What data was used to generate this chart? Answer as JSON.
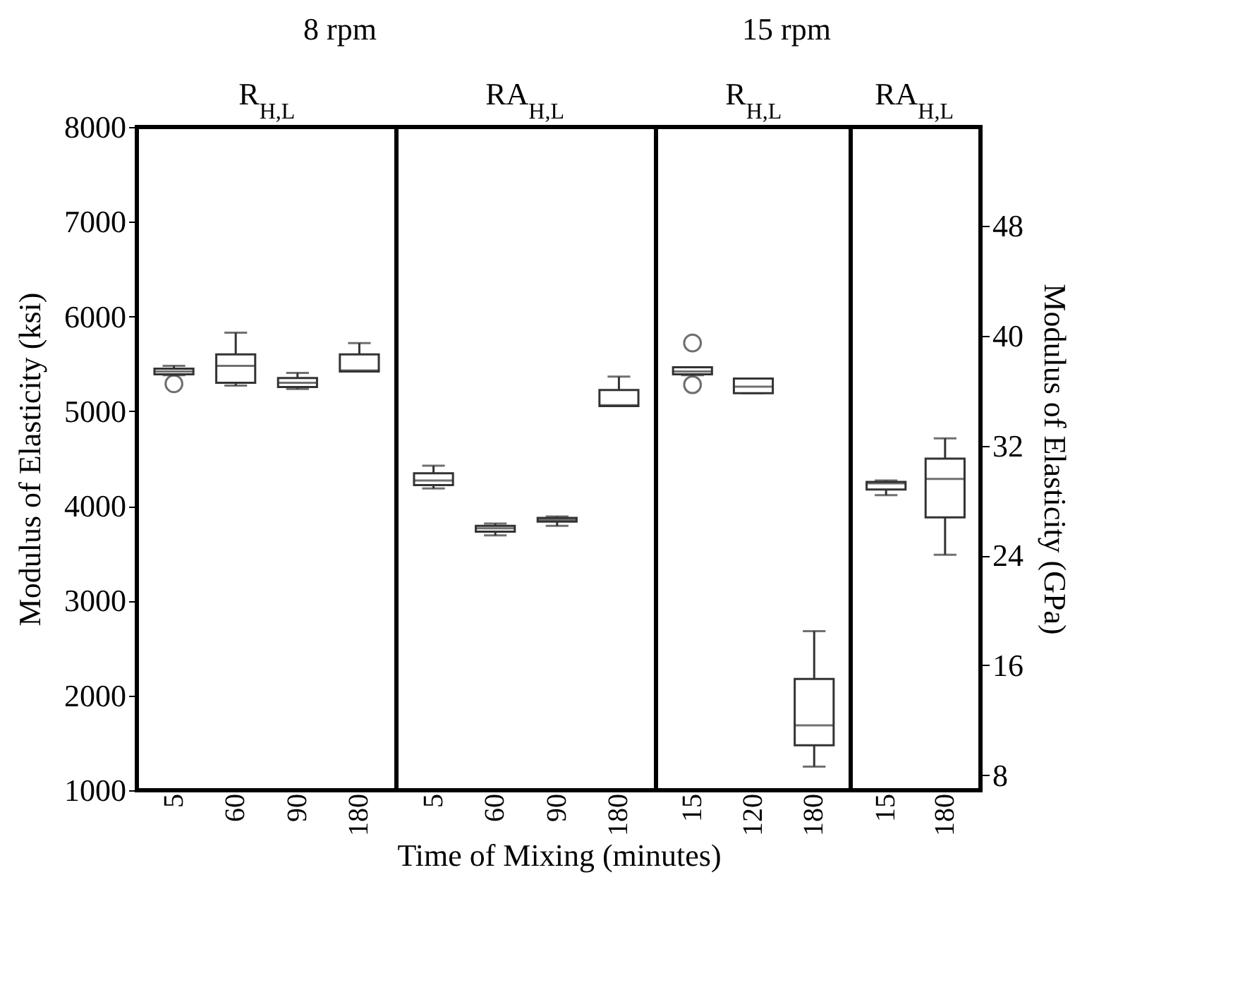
{
  "chart_data": [
    {
      "type": "box",
      "title": "8 rpm",
      "subtitle": "R$_{H,L}$",
      "ylabel": "Modulus of Elasticity (ksi)",
      "xlabel": "Time of Mixing (minutes)",
      "categories": [
        "5",
        "60",
        "90",
        "180"
      ],
      "ylim": [
        1000,
        8000
      ],
      "yticks": [
        1000,
        2000,
        3000,
        4000,
        5000,
        6000,
        7000,
        8000
      ],
      "boxes": [
        {
          "low": 5380,
          "q1": 5390,
          "median": 5420,
          "q3": 5450,
          "high": 5480,
          "outliers": [
            5290
          ]
        },
        {
          "low": 5270,
          "q1": 5300,
          "median": 5480,
          "q3": 5600,
          "high": 5830
        },
        {
          "low": 5235,
          "q1": 5255,
          "median": 5300,
          "q3": 5350,
          "high": 5405
        },
        {
          "low": 5420,
          "q1": 5420,
          "median": 5430,
          "q3": 5600,
          "high": 5720
        }
      ]
    },
    {
      "type": "box",
      "subtitle": "RA$_{H,L}$",
      "categories": [
        "5",
        "60",
        "90",
        "180"
      ],
      "ylim": [
        1000,
        8000
      ],
      "tick_labels": "x",
      "boxes": [
        {
          "low": 4185,
          "q1": 4220,
          "median": 4270,
          "q3": 4345,
          "high": 4425
        },
        {
          "low": 3690,
          "q1": 3730,
          "median": 3765,
          "q3": 3790,
          "high": 3815
        },
        {
          "low": 3790,
          "q1": 3835,
          "median": 3855,
          "q3": 3875,
          "high": 3890
        },
        {
          "low": 5055,
          "q1": 5055,
          "median": 5065,
          "q3": 5225,
          "high": 5365
        }
      ]
    },
    {
      "type": "box",
      "title": "15 rpm",
      "subtitle": "R$_{H,L}$",
      "categories": [
        "15",
        "120",
        "180"
      ],
      "ylim": [
        1000,
        8000
      ],
      "tick_labels": "x",
      "boxes": [
        {
          "low": 5380,
          "q1": 5390,
          "median": 5420,
          "q3": 5465,
          "high": 5465,
          "outliers": [
            5720,
            5280
          ]
        },
        {
          "low": 5190,
          "q1": 5190,
          "median": 5260,
          "q3": 5345,
          "high": 5345
        },
        {
          "low": 1250,
          "q1": 1475,
          "median": 1685,
          "q3": 2175,
          "high": 2680
        }
      ]
    },
    {
      "type": "box",
      "subtitle": "RA$_{H,L}$",
      "categories": [
        "15",
        "180"
      ],
      "ylim": [
        1000,
        8000
      ],
      "tick_labels": [
        "x",
        "y2"
      ],
      "y2label": "Modulus of Elasticity (GPa)",
      "y2lim": [
        6.9,
        55.2
      ],
      "y2ticks": [
        8,
        16,
        24,
        32,
        40,
        48
      ],
      "boxes": [
        {
          "low": 4115,
          "q1": 4175,
          "median": 4240,
          "q3": 4255,
          "high": 4270
        },
        {
          "low": 3485,
          "q1": 3880,
          "median": 4285,
          "q3": 4500,
          "high": 4715
        }
      ]
    }
  ]
}
